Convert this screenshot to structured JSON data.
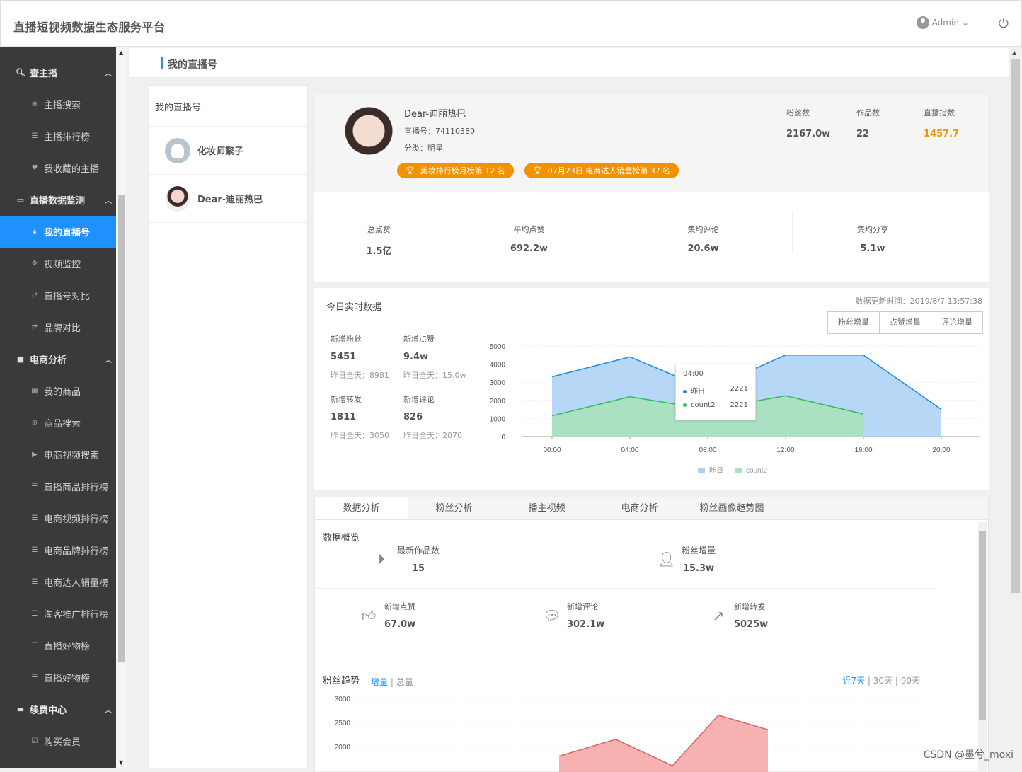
{
  "header": {
    "app_title": "直播短视频数据生态服务平台",
    "user": "Admin"
  },
  "sidebar": {
    "groups": [
      {
        "label": "查主播",
        "items": [
          "主播搜索",
          "主播排行榜",
          "我收藏的主播"
        ]
      },
      {
        "label": "直播数据监测",
        "items": [
          "我的直播号",
          "视频监控",
          "直播号对比",
          "品牌对比"
        ]
      },
      {
        "label": "电商分析",
        "items": [
          "我的商品",
          "商品搜索",
          "电商视频搜索",
          "直播商品排行榜",
          "电商视频排行榜",
          "电商品牌排行榜",
          "电商达人销量榜",
          "淘客推广排行榜",
          "直播好物榜",
          "直播好物榜"
        ]
      },
      {
        "label": "续费中心",
        "items": [
          "购买会员"
        ]
      }
    ],
    "active_item": "我的直播号"
  },
  "page_header": {
    "title": "我的直播号"
  },
  "accounts": {
    "title": "我的直播号",
    "list": [
      "化妆师繁子",
      "Dear-迪丽热巴"
    ]
  },
  "profile": {
    "name": "Dear-迪丽热巴",
    "id": "直播号：74110380",
    "category": "分类：明星",
    "badges": [
      "美妆排行榜月榜第 12 名",
      "07月23日 电商达人销量榜第 37 名"
    ],
    "stats": [
      {
        "label": "粉丝数",
        "value": "2167.0w"
      },
      {
        "label": "作品数",
        "value": "22"
      },
      {
        "label": "直播指数",
        "value": "1457.7"
      }
    ]
  },
  "totals": [
    {
      "label": "总点赞",
      "value": "1.5亿"
    },
    {
      "label": "平均点赞",
      "value": "692.2w"
    },
    {
      "label": "集均评论",
      "value": "20.6w"
    },
    {
      "label": "集均分享",
      "value": "5.1w"
    }
  ],
  "today": {
    "title": "今日实时数据",
    "updated": "数据更新时间：2019/8/7 13:57:38",
    "buttons": [
      "粉丝增量",
      "点赞增量",
      "评论增量"
    ],
    "kpis": [
      {
        "label": "新增粉丝",
        "value": "5451",
        "yesterday": "昨日全天：8981"
      },
      {
        "label": "新增点赞",
        "value": "9.4w",
        "yesterday": "昨日全天：15.0w"
      },
      {
        "label": "新增转发",
        "value": "1811",
        "yesterday": "昨日全天：3050"
      },
      {
        "label": "新增评论",
        "value": "826",
        "yesterday": "昨日全天：2070"
      }
    ],
    "tooltip": {
      "time": "04:00",
      "rows": [
        {
          "name": "昨日",
          "value": "2221"
        },
        {
          "name": "count2",
          "value": "2221"
        }
      ]
    }
  },
  "chart_data": [
    {
      "type": "area",
      "categories": [
        "00:00",
        "04:00",
        "08:00",
        "12:00",
        "16:00",
        "20:00"
      ],
      "ylim": [
        0,
        5000
      ],
      "yticks": [
        "5000",
        "4000",
        "3000",
        "2000",
        "1000",
        "0"
      ],
      "series": [
        {
          "name": "昨日",
          "values": [
            3300,
            4400,
            2600,
            4500,
            4500,
            1500
          ],
          "color": "#a9d1f5"
        },
        {
          "name": "count2",
          "values": [
            1150,
            2200,
            1500,
            2250,
            1250,
            null
          ],
          "color": "#a8e3b8"
        }
      ],
      "legend": "bottom-center"
    },
    {
      "type": "area",
      "yticks": [
        "3000",
        "2500",
        "2000"
      ],
      "series": [
        {
          "values": [
            null,
            1800,
            2150,
            1600,
            2650,
            2350,
            null
          ],
          "color": "#f4a3a3"
        }
      ]
    }
  ],
  "tabs": [
    "数据分析",
    "粉丝分析",
    "播主视频",
    "电商分析",
    "粉丝画像趋势图"
  ],
  "overview": {
    "title": "数据概览",
    "items": [
      {
        "label": "最新作品数",
        "value": "15",
        "icon": "play-icon"
      },
      {
        "label": "粉丝增量",
        "value": "15.3w",
        "icon": "user-add-icon"
      },
      {
        "label": "新增点赞",
        "value": "67.0w",
        "icon": "thumbs-up-icon"
      },
      {
        "label": "新增评论",
        "value": "302.1w",
        "icon": "comment-icon"
      },
      {
        "label": "新增转发",
        "value": "5025w",
        "icon": "share-icon"
      }
    ]
  },
  "trend": {
    "title": "粉丝趋势",
    "mode_on": "增量",
    "mode_sep": " | ",
    "mode_off": "总量",
    "ranges": [
      "近7天",
      "30天",
      "90天"
    ]
  },
  "watermark": "CSDN @墨兮_moxi"
}
